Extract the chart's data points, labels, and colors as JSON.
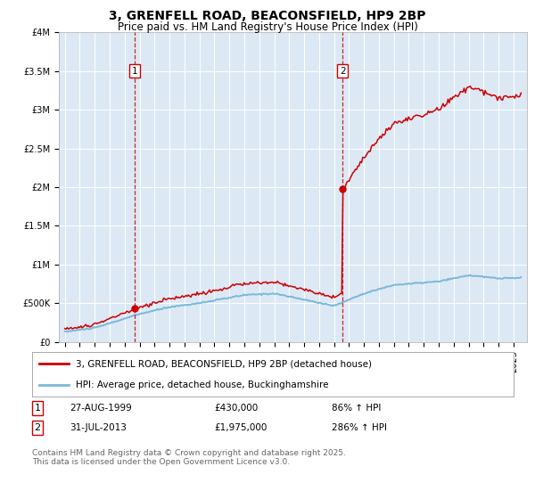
{
  "title": "3, GRENFELL ROAD, BEACONSFIELD, HP9 2BP",
  "subtitle": "Price paid vs. HM Land Registry's House Price Index (HPI)",
  "background_color": "#ffffff",
  "plot_bg_color": "#dce9f5",
  "grid_color": "#ffffff",
  "red_line_color": "#cc0000",
  "blue_line_color": "#7ab8d9",
  "marker_color": "#cc0000",
  "dashed_line_color": "#cc0000",
  "ylim": [
    0,
    4000000
  ],
  "yticks": [
    0,
    500000,
    1000000,
    1500000,
    2000000,
    2500000,
    3000000,
    3500000,
    4000000
  ],
  "ytick_labels": [
    "£0",
    "£500K",
    "£1M",
    "£1.5M",
    "£2M",
    "£2.5M",
    "£3M",
    "£3.5M",
    "£4M"
  ],
  "year_start": 1995,
  "year_end": 2025,
  "purchase1_year": 1999.65,
  "purchase1_price": 430000,
  "purchase2_year": 2013.58,
  "purchase2_price": 1975000,
  "legend_red": "3, GRENFELL ROAD, BEACONSFIELD, HP9 2BP (detached house)",
  "legend_blue": "HPI: Average price, detached house, Buckinghamshire",
  "footer": "Contains HM Land Registry data © Crown copyright and database right 2025.\nThis data is licensed under the Open Government Licence v3.0.",
  "title_fontsize": 10,
  "subtitle_fontsize": 8.5,
  "tick_fontsize": 7,
  "legend_fontsize": 7.5,
  "footer_fontsize": 6.5
}
